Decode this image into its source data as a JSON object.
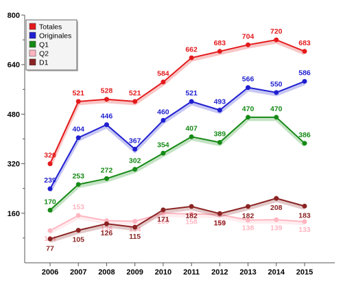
{
  "chart_data": {
    "type": "line",
    "categories": [
      "2006",
      "2007",
      "2008",
      "2009",
      "2010",
      "2011",
      "2012",
      "2013",
      "2014",
      "2015"
    ],
    "ylim": [
      0,
      800
    ],
    "yticks": [
      160,
      320,
      480,
      640,
      800
    ],
    "grid": false,
    "legend_position": "top-left",
    "series": [
      {
        "name": "Totales",
        "color": "#e41a1c",
        "values": [
          320,
          521,
          528,
          521,
          584,
          662,
          683,
          704,
          720,
          683
        ]
      },
      {
        "name": "Originales",
        "color": "#1f1fd1",
        "values": [
          239,
          404,
          446,
          367,
          460,
          521,
          493,
          566,
          550,
          586
        ]
      },
      {
        "name": "Q1",
        "color": "#168a16",
        "values": [
          170,
          253,
          272,
          302,
          354,
          407,
          389,
          470,
          470,
          386
        ]
      },
      {
        "name": "Q2",
        "color": "#ffb6c1",
        "values": [
          104,
          153,
          136,
          134,
          160,
          158,
          156,
          138,
          139,
          133
        ]
      },
      {
        "name": "D1",
        "color": "#8b2323",
        "values": [
          77,
          105,
          126,
          115,
          171,
          182,
          159,
          182,
          208,
          183
        ]
      }
    ]
  }
}
